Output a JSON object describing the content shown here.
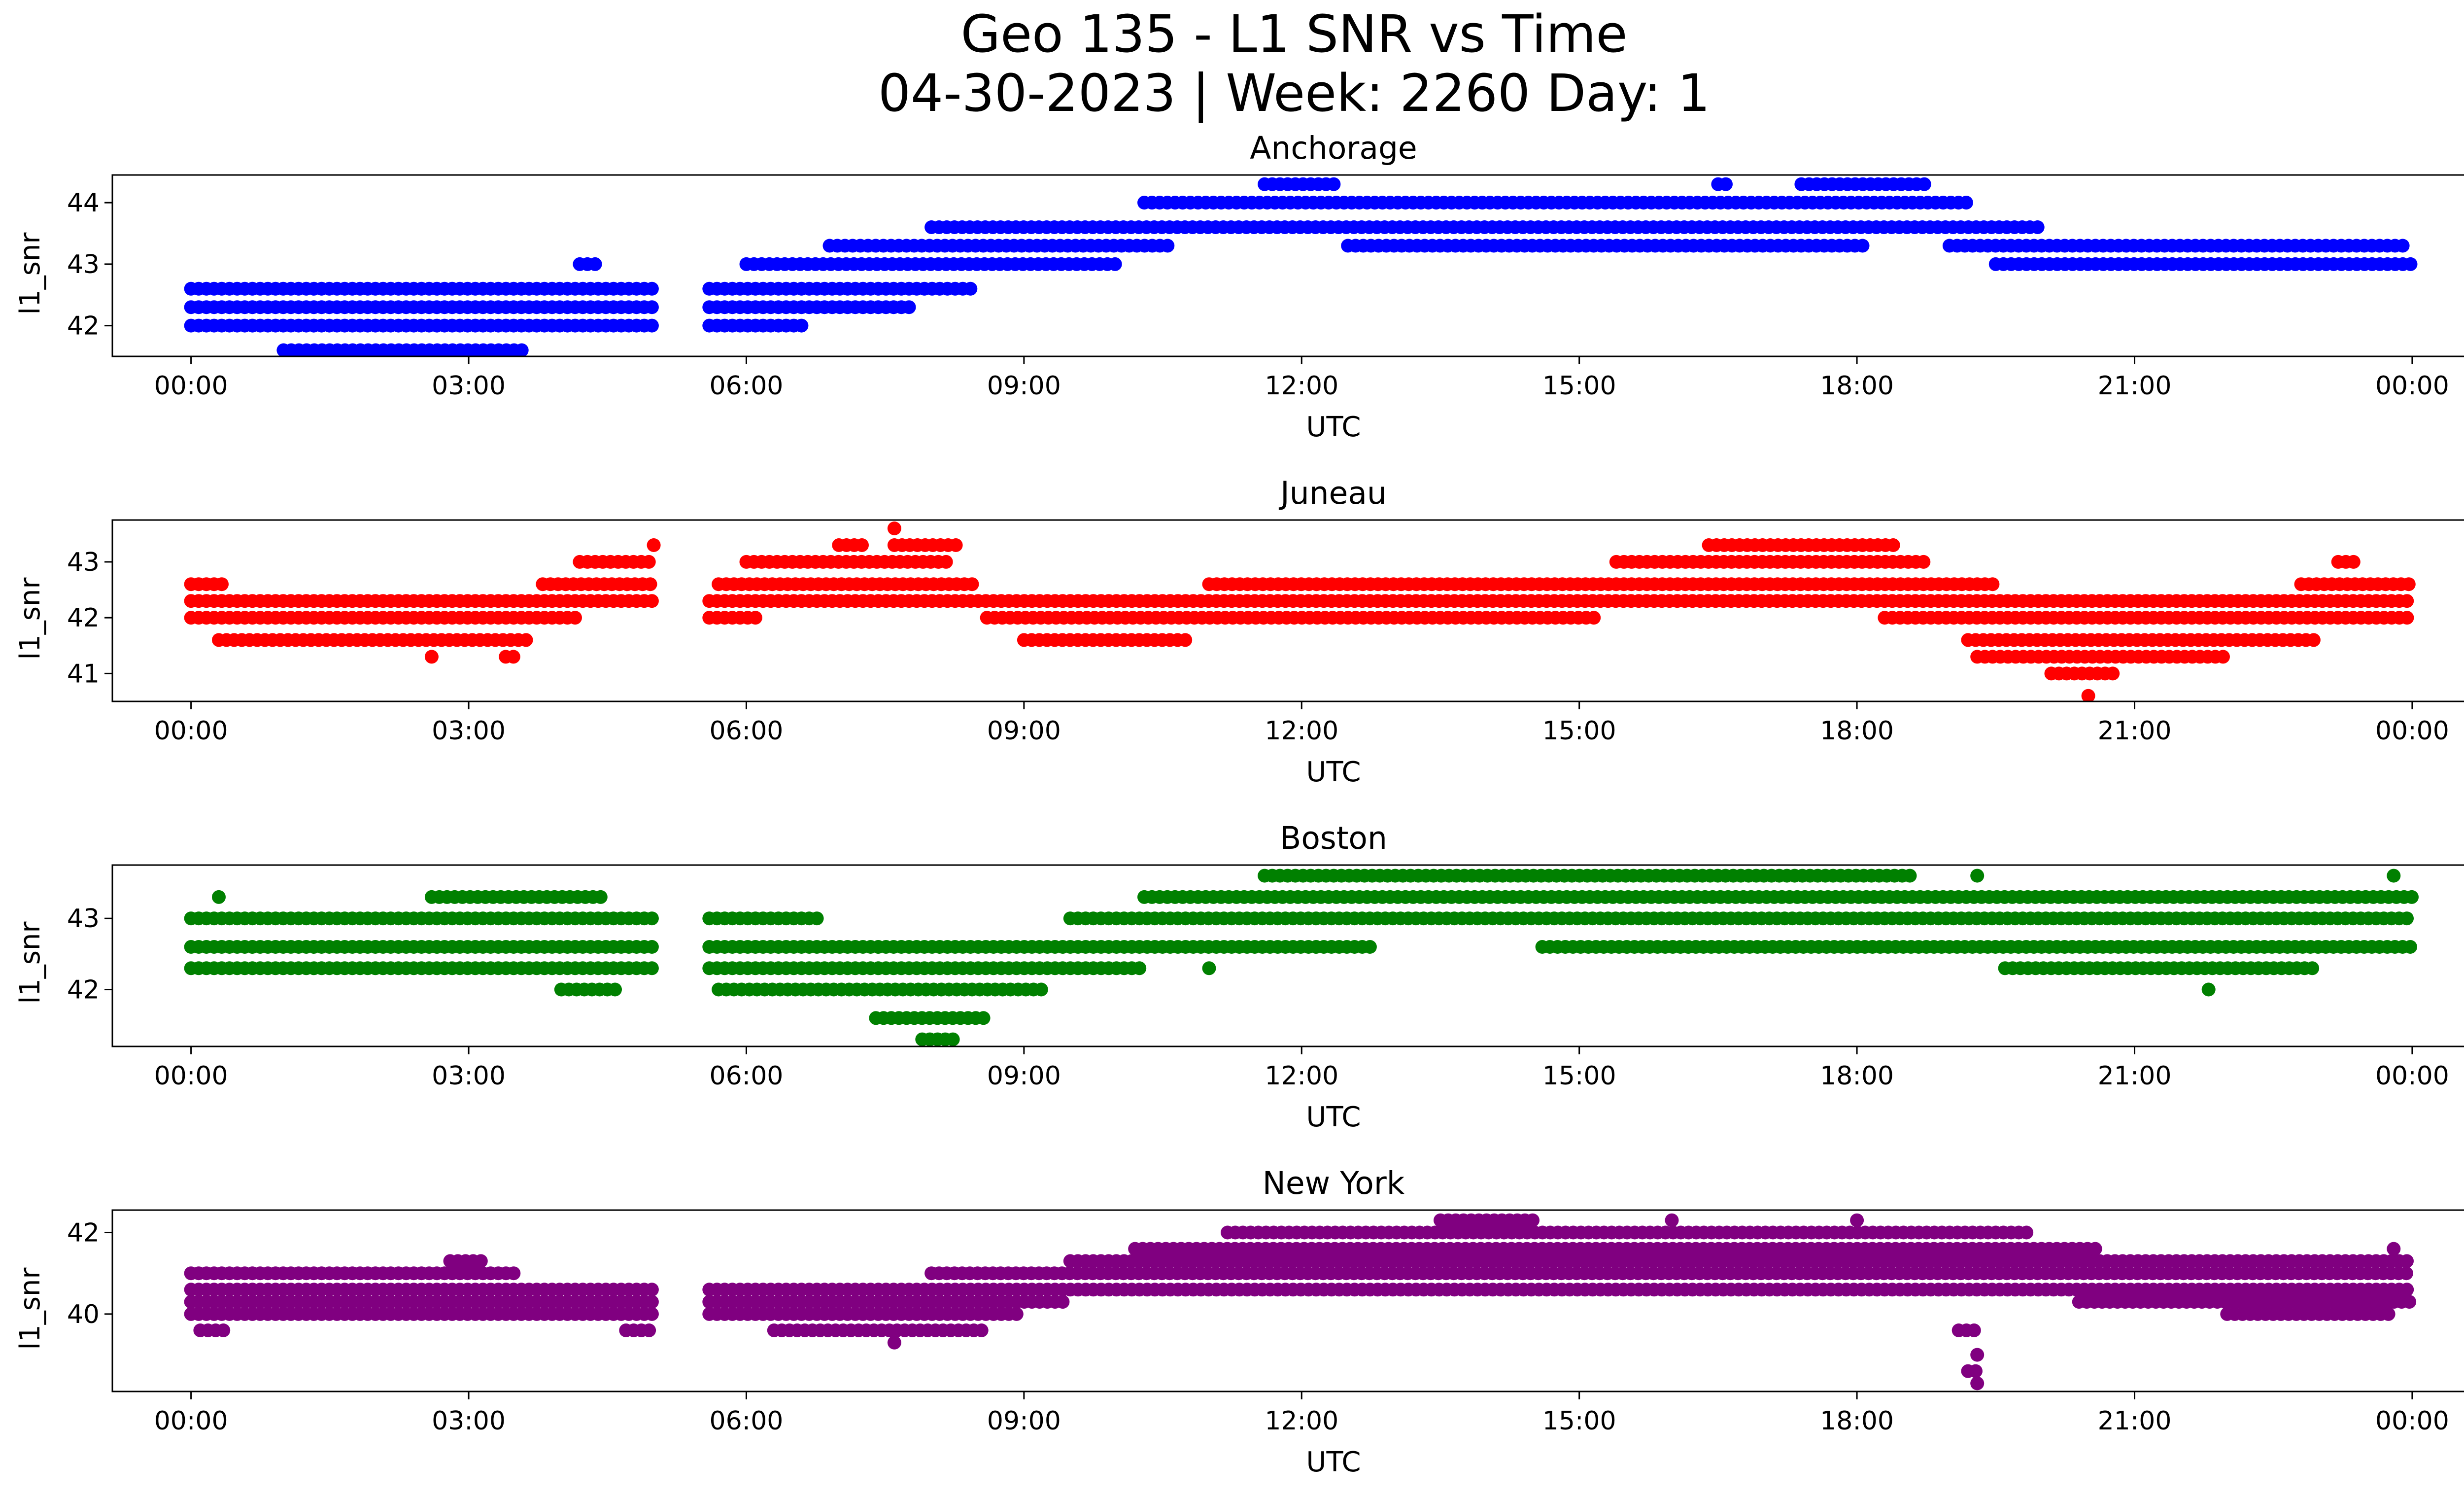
{
  "figure": {
    "title_line1": "Geo 135 - L1 SNR vs Time",
    "title_line2": "04-30-2023 | Week: 2260 Day: 1"
  },
  "chart_data": [
    {
      "type": "scatter",
      "title": "Anchorage",
      "xlabel": "UTC",
      "ylabel": "l1_snr",
      "color": "#0000ff",
      "xlim": [
        -0.85,
        25.55
      ],
      "ylim": [
        41.5,
        44.45
      ],
      "xticks": [
        "00:00",
        "03:00",
        "06:00",
        "09:00",
        "12:00",
        "15:00",
        "18:00",
        "21:00",
        "00:00"
      ],
      "yticks": [
        42,
        43,
        44
      ],
      "series": [
        {
          "levels": [
            {
              "y": 41.6,
              "segments": [
                [
                  1.0,
                  3.6
                ]
              ]
            },
            {
              "y": 42.0,
              "segments": [
                [
                  0.0,
                  5.0
                ],
                [
                  5.6,
                  6.6
                ]
              ]
            },
            {
              "y": 42.3,
              "segments": [
                [
                  0.0,
                  5.0
                ],
                [
                  5.6,
                  7.8
                ]
              ]
            },
            {
              "y": 42.6,
              "segments": [
                [
                  0.0,
                  5.0
                ],
                [
                  5.6,
                  8.5
                ]
              ]
            },
            {
              "y": 43.0,
              "segments": [
                [
                  4.2,
                  4.4
                ],
                [
                  6.0,
                  10.0
                ],
                [
                  19.5,
                  24.0
                ]
              ]
            },
            {
              "y": 43.3,
              "segments": [
                [
                  6.9,
                  10.6
                ],
                [
                  12.5,
                  18.1
                ],
                [
                  19.0,
                  23.9
                ]
              ]
            },
            {
              "y": 43.6,
              "segments": [
                [
                  8.0,
                  20.0
                ]
              ]
            },
            {
              "y": 44.0,
              "segments": [
                [
                  10.3,
                  19.2
                ]
              ]
            },
            {
              "y": 44.3,
              "segments": [
                [
                  11.6,
                  12.4
                ],
                [
                  16.5,
                  16.6
                ],
                [
                  17.4,
                  18.8
                ]
              ]
            }
          ]
        }
      ]
    },
    {
      "type": "scatter",
      "title": "Juneau",
      "xlabel": "UTC",
      "ylabel": "l1_snr",
      "color": "#ff0000",
      "xlim": [
        -0.85,
        25.55
      ],
      "ylim": [
        40.5,
        43.75
      ],
      "xticks": [
        "00:00",
        "03:00",
        "06:00",
        "09:00",
        "12:00",
        "15:00",
        "18:00",
        "21:00",
        "00:00"
      ],
      "yticks": [
        41,
        42,
        43
      ],
      "series": [
        {
          "levels": [
            {
              "y": 40.6,
              "segments": [
                [
                  20.5,
                  20.5
                ]
              ]
            },
            {
              "y": 41.0,
              "segments": [
                [
                  20.1,
                  20.8
                ]
              ]
            },
            {
              "y": 41.3,
              "segments": [
                [
                  2.6,
                  2.6
                ],
                [
                  3.4,
                  3.5
                ],
                [
                  19.3,
                  22.0
                ]
              ]
            },
            {
              "y": 41.6,
              "segments": [
                [
                  0.3,
                  3.7
                ],
                [
                  9.0,
                  10.8
                ],
                [
                  19.2,
                  23.0
                ]
              ]
            },
            {
              "y": 42.0,
              "segments": [
                [
                  0.0,
                  4.2
                ],
                [
                  5.6,
                  6.1
                ],
                [
                  8.6,
                  15.2
                ],
                [
                  18.3,
                  24.0
                ]
              ]
            },
            {
              "y": 42.3,
              "segments": [
                [
                  0.0,
                  5.0
                ],
                [
                  5.6,
                  24.0
                ]
              ]
            },
            {
              "y": 42.6,
              "segments": [
                [
                  0.0,
                  0.4
                ],
                [
                  3.8,
                  5.0
                ],
                [
                  5.7,
                  8.5
                ],
                [
                  11.0,
                  19.5
                ],
                [
                  22.8,
                  24.0
                ]
              ]
            },
            {
              "y": 43.0,
              "segments": [
                [
                  4.2,
                  5.0
                ],
                [
                  6.0,
                  8.2
                ],
                [
                  15.4,
                  18.8
                ],
                [
                  23.2,
                  23.4
                ]
              ]
            },
            {
              "y": 43.3,
              "segments": [
                [
                  5.0,
                  5.0
                ],
                [
                  7.0,
                  7.3
                ],
                [
                  7.6,
                  8.3
                ],
                [
                  16.4,
                  18.4
                ]
              ]
            },
            {
              "y": 43.6,
              "segments": [
                [
                  7.6,
                  7.6
                ]
              ]
            }
          ]
        }
      ]
    },
    {
      "type": "scatter",
      "title": "Boston",
      "xlabel": "UTC",
      "ylabel": "l1_snr",
      "color": "#008000",
      "xlim": [
        -0.85,
        25.55
      ],
      "ylim": [
        41.2,
        43.75
      ],
      "xticks": [
        "00:00",
        "03:00",
        "06:00",
        "09:00",
        "12:00",
        "15:00",
        "18:00",
        "21:00",
        "00:00"
      ],
      "yticks": [
        42,
        43
      ],
      "series": [
        {
          "levels": [
            {
              "y": 41.3,
              "segments": [
                [
                  7.9,
                  8.3
                ]
              ]
            },
            {
              "y": 41.6,
              "segments": [
                [
                  7.4,
                  8.6
                ]
              ]
            },
            {
              "y": 42.0,
              "segments": [
                [
                  4.0,
                  4.6
                ],
                [
                  5.7,
                  9.2
                ],
                [
                  21.8,
                  21.8
                ]
              ]
            },
            {
              "y": 42.3,
              "segments": [
                [
                  0.0,
                  5.0
                ],
                [
                  5.6,
                  10.3
                ],
                [
                  11.0,
                  11.0
                ],
                [
                  19.6,
                  23.0
                ]
              ]
            },
            {
              "y": 42.6,
              "segments": [
                [
                  0.0,
                  5.0
                ],
                [
                  5.6,
                  12.8
                ],
                [
                  14.6,
                  24.0
                ]
              ]
            },
            {
              "y": 43.0,
              "segments": [
                [
                  0.0,
                  5.0
                ],
                [
                  5.6,
                  6.8
                ],
                [
                  9.5,
                  24.0
                ]
              ]
            },
            {
              "y": 43.3,
              "segments": [
                [
                  0.3,
                  0.3
                ],
                [
                  2.6,
                  4.5
                ],
                [
                  10.3,
                  24.0
                ]
              ]
            },
            {
              "y": 43.6,
              "segments": [
                [
                  11.6,
                  18.6
                ],
                [
                  19.3,
                  19.3
                ],
                [
                  23.8,
                  23.8
                ]
              ]
            }
          ]
        }
      ]
    },
    {
      "type": "scatter",
      "title": "New York",
      "xlabel": "UTC",
      "ylabel": "l1_snr",
      "color": "#800080",
      "xlim": [
        -0.85,
        25.55
      ],
      "ylim": [
        38.1,
        42.55
      ],
      "xticks": [
        "00:00",
        "03:00",
        "06:00",
        "09:00",
        "12:00",
        "15:00",
        "18:00",
        "21:00",
        "00:00"
      ],
      "yticks": [
        40,
        42
      ],
      "series": [
        {
          "levels": [
            {
              "y": 38.3,
              "segments": [
                [
                  19.3,
                  19.3
                ]
              ]
            },
            {
              "y": 38.6,
              "segments": [
                [
                  19.2,
                  19.3
                ]
              ]
            },
            {
              "y": 39.0,
              "segments": [
                [
                  19.3,
                  19.3
                ]
              ]
            },
            {
              "y": 39.3,
              "segments": [
                [
                  7.6,
                  7.6
                ]
              ]
            },
            {
              "y": 39.6,
              "segments": [
                [
                  0.1,
                  0.4
                ],
                [
                  4.7,
                  5.0
                ],
                [
                  6.3,
                  8.6
                ],
                [
                  19.1,
                  19.3
                ]
              ]
            },
            {
              "y": 40.0,
              "segments": [
                [
                  0.0,
                  5.0
                ],
                [
                  5.6,
                  9.0
                ],
                [
                  22.0,
                  23.8
                ]
              ]
            },
            {
              "y": 40.3,
              "segments": [
                [
                  0.0,
                  5.0
                ],
                [
                  5.6,
                  9.5
                ],
                [
                  20.4,
                  24.0
                ]
              ]
            },
            {
              "y": 40.6,
              "segments": [
                [
                  0.0,
                  5.0
                ],
                [
                  5.6,
                  24.0
                ]
              ]
            },
            {
              "y": 41.0,
              "segments": [
                [
                  0.0,
                  3.5
                ],
                [
                  8.0,
                  24.0
                ]
              ]
            },
            {
              "y": 41.3,
              "segments": [
                [
                  2.8,
                  3.2
                ],
                [
                  9.5,
                  24.0
                ]
              ]
            },
            {
              "y": 41.6,
              "segments": [
                [
                  10.2,
                  20.6
                ],
                [
                  23.8,
                  23.8
                ]
              ]
            },
            {
              "y": 42.0,
              "segments": [
                [
                  11.2,
                  19.9
                ]
              ]
            },
            {
              "y": 42.3,
              "segments": [
                [
                  13.5,
                  14.5
                ],
                [
                  16.0,
                  16.0
                ],
                [
                  18.0,
                  18.0
                ]
              ]
            }
          ]
        }
      ]
    }
  ]
}
